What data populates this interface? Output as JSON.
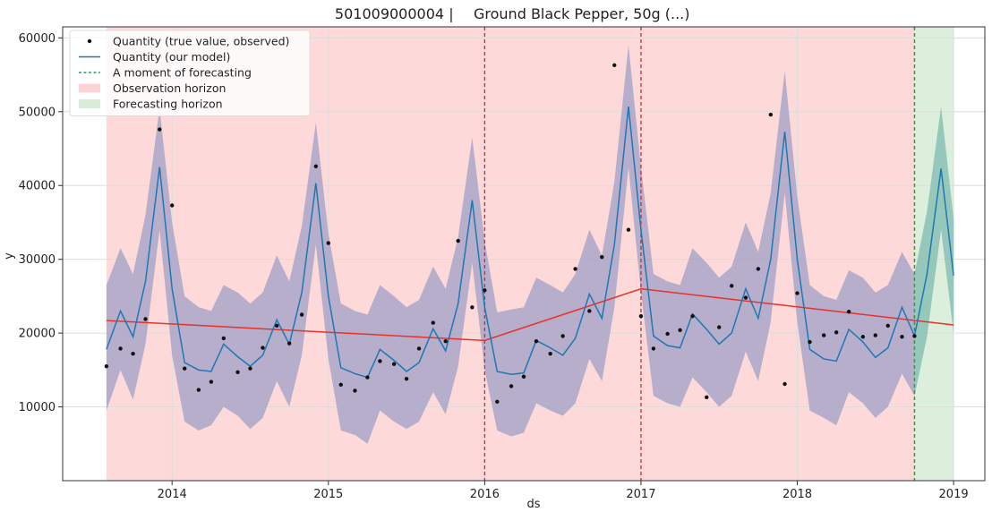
{
  "chart_data": {
    "type": "line",
    "title_id": "501009000004",
    "title_separator": "|",
    "title_name": "Ground Black Pepper, 50g (...)",
    "xlabel": "ds",
    "ylabel": "y",
    "xlim": [
      2013.3,
      2019.2
    ],
    "ylim": [
      0,
      61500
    ],
    "x_ticks": [
      2014,
      2015,
      2016,
      2017,
      2018,
      2019
    ],
    "x_tick_labels": [
      "2014",
      "2015",
      "2016",
      "2017",
      "2018",
      "2019"
    ],
    "y_ticks": [
      10000,
      20000,
      30000,
      40000,
      50000,
      60000
    ],
    "y_tick_labels": [
      "10000",
      "20000",
      "30000",
      "40000",
      "50000",
      "60000"
    ],
    "grid": true,
    "legend_position": "top-left",
    "legend": [
      {
        "label": "Quantity (true value, observed)",
        "kind": "dot",
        "color": "#111111"
      },
      {
        "label": "Quantity (our model)",
        "kind": "line",
        "color": "#1f77b4"
      },
      {
        "label": "A moment of forecasting",
        "kind": "dashed",
        "color": "#2a9d6a"
      },
      {
        "label": "Observation horizon",
        "kind": "patch",
        "color": "#fbd5d5"
      },
      {
        "label": "Forecasting horizon",
        "kind": "patch",
        "color": "#d9ecd9"
      }
    ],
    "observation_horizon": [
      2013.58,
      2018.75
    ],
    "forecasting_horizon": [
      2018.75,
      2019.0
    ],
    "forecast_moment": 2018.75,
    "changepoints": [
      2016.0,
      2017.0
    ],
    "colors": {
      "observed_dots": "#111111",
      "model_line": "#1f77b4",
      "uncertainty_band": "#9e9fc4",
      "forecast_band": "#7fb9b0",
      "trend_line": "#e8322b",
      "changepoint_line": "#d62728",
      "forecast_moment_line": "#2ca02c",
      "observation_region": "#fdd9d9",
      "forecast_region": "#dcefdc"
    },
    "model": {
      "x": [
        2013.58,
        2013.67,
        2013.75,
        2013.83,
        2013.92,
        2014.0,
        2014.08,
        2014.17,
        2014.25,
        2014.33,
        2014.42,
        2014.5,
        2014.58,
        2014.67,
        2014.75,
        2014.83,
        2014.92,
        2015.0,
        2015.08,
        2015.17,
        2015.25,
        2015.33,
        2015.42,
        2015.5,
        2015.58,
        2015.67,
        2015.75,
        2015.83,
        2015.92,
        2016.0,
        2016.08,
        2016.17,
        2016.25,
        2016.33,
        2016.42,
        2016.5,
        2016.58,
        2016.67,
        2016.75,
        2016.83,
        2016.92,
        2017.0,
        2017.08,
        2017.17,
        2017.25,
        2017.33,
        2017.42,
        2017.5,
        2017.58,
        2017.67,
        2017.75,
        2017.83,
        2017.92,
        2018.0,
        2018.08,
        2018.17,
        2018.25,
        2018.33,
        2018.42,
        2018.5,
        2018.58,
        2018.67,
        2018.75,
        2018.83,
        2018.92,
        2019.0
      ],
      "y": [
        17800,
        23000,
        19500,
        27000,
        42500,
        26000,
        16000,
        15000,
        14800,
        18500,
        16800,
        15500,
        17000,
        21800,
        18500,
        25500,
        40300,
        25000,
        15300,
        14500,
        14000,
        17800,
        16300,
        14800,
        16000,
        20600,
        17600,
        24000,
        38000,
        23500,
        14800,
        14400,
        14600,
        19000,
        18000,
        17000,
        19300,
        25300,
        22000,
        32000,
        50700,
        34000,
        19600,
        18300,
        18000,
        22600,
        20500,
        18500,
        20000,
        26000,
        22000,
        30000,
        47300,
        30000,
        17800,
        16500,
        16200,
        20500,
        18800,
        16700,
        18000,
        23500,
        19600,
        28000,
        42300,
        27800
      ],
      "upper": [
        26500,
        31500,
        28000,
        36000,
        50500,
        35000,
        25000,
        23500,
        23000,
        26500,
        25500,
        24000,
        25500,
        30500,
        27000,
        34500,
        48500,
        33500,
        24000,
        23000,
        22500,
        26500,
        25000,
        23500,
        24500,
        29000,
        26000,
        33000,
        46500,
        32500,
        22800,
        23200,
        23500,
        27500,
        26500,
        25500,
        28000,
        34000,
        30500,
        40500,
        59000,
        42500,
        28000,
        27000,
        26500,
        31500,
        29500,
        27500,
        29000,
        35000,
        31000,
        39000,
        55500,
        38500,
        26500,
        25000,
        24500,
        28500,
        27500,
        25500,
        26500,
        31000,
        28000,
        36500,
        50700,
        35500
      ],
      "lower": [
        9500,
        15000,
        11000,
        18500,
        34000,
        17000,
        8000,
        6800,
        7500,
        10000,
        8800,
        7000,
        8500,
        13500,
        10000,
        17000,
        32000,
        16500,
        6800,
        6200,
        5000,
        9500,
        8000,
        7000,
        8000,
        12000,
        9000,
        15500,
        29500,
        15000,
        6800,
        6000,
        6500,
        10500,
        9500,
        8800,
        10500,
        16500,
        13500,
        23500,
        42500,
        25500,
        11500,
        10500,
        10000,
        14000,
        12000,
        10000,
        11500,
        17500,
        13500,
        21500,
        39000,
        21500,
        9500,
        8500,
        7500,
        12000,
        10500,
        8500,
        10000,
        14500,
        11500,
        19500,
        34000,
        20000
      ]
    },
    "trend": {
      "x": [
        2013.58,
        2016.0,
        2017.0,
        2019.0
      ],
      "y": [
        21700,
        19000,
        26000,
        21100
      ]
    },
    "observed": {
      "x": [
        2013.58,
        2013.67,
        2013.75,
        2013.83,
        2013.92,
        2014.0,
        2014.08,
        2014.17,
        2014.25,
        2014.33,
        2014.42,
        2014.5,
        2014.58,
        2014.67,
        2014.75,
        2014.83,
        2014.92,
        2015.0,
        2015.08,
        2015.17,
        2015.25,
        2015.33,
        2015.42,
        2015.5,
        2015.58,
        2015.67,
        2015.75,
        2015.83,
        2015.92,
        2016.0,
        2016.08,
        2016.17,
        2016.25,
        2016.33,
        2016.42,
        2016.5,
        2016.58,
        2016.67,
        2016.75,
        2016.83,
        2016.92,
        2017.0,
        2017.08,
        2017.17,
        2017.25,
        2017.33,
        2017.42,
        2017.5,
        2017.58,
        2017.67,
        2017.75,
        2017.83,
        2017.92,
        2018.0,
        2018.08,
        2018.17,
        2018.25,
        2018.33,
        2018.42,
        2018.5,
        2018.58,
        2018.67,
        2018.75
      ],
      "y": [
        15500,
        17900,
        17200,
        21900,
        47600,
        37300,
        15200,
        12300,
        13400,
        19300,
        14700,
        15200,
        18000,
        21000,
        18600,
        22500,
        42600,
        32200,
        13000,
        12200,
        14000,
        16200,
        15800,
        13800,
        17900,
        21400,
        18900,
        32500,
        23500,
        25800,
        10700,
        12800,
        14100,
        18900,
        17200,
        19600,
        28700,
        23000,
        30300,
        56300,
        34000,
        22300,
        17900,
        19900,
        20400,
        22300,
        11300,
        20800,
        26400,
        24800,
        28700,
        49600,
        13100,
        25400,
        18800,
        19700,
        20100,
        22900,
        19500,
        19700,
        21000,
        19500,
        19600
      ]
    }
  }
}
